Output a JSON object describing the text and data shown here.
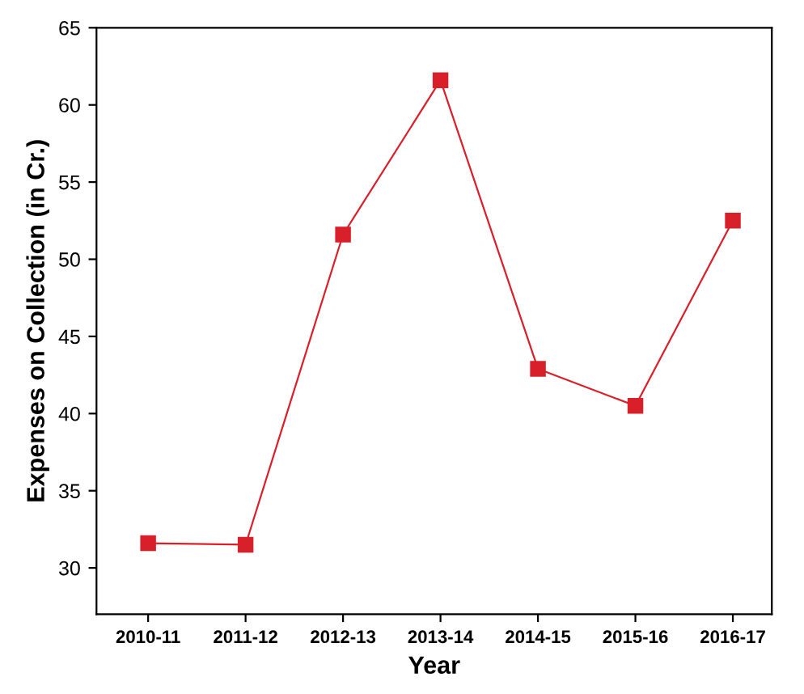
{
  "chart_data": {
    "type": "line",
    "xlabel": "Year",
    "ylabel": "Expenses on Collection (in Cr.)",
    "categories": [
      "2010-11",
      "2011-12",
      "2012-13",
      "2013-14",
      "2014-15",
      "2015-16",
      "2016-17"
    ],
    "series": [
      {
        "color": "#d8202a",
        "values": [
          31.6,
          31.5,
          51.6,
          61.6,
          42.9,
          40.5,
          52.5
        ]
      }
    ],
    "ylim": [
      27,
      65
    ],
    "yticks": [
      30,
      35,
      40,
      45,
      50,
      55,
      60,
      65
    ],
    "grid": false,
    "legend": false,
    "marker": "square",
    "line_style": "solid"
  }
}
